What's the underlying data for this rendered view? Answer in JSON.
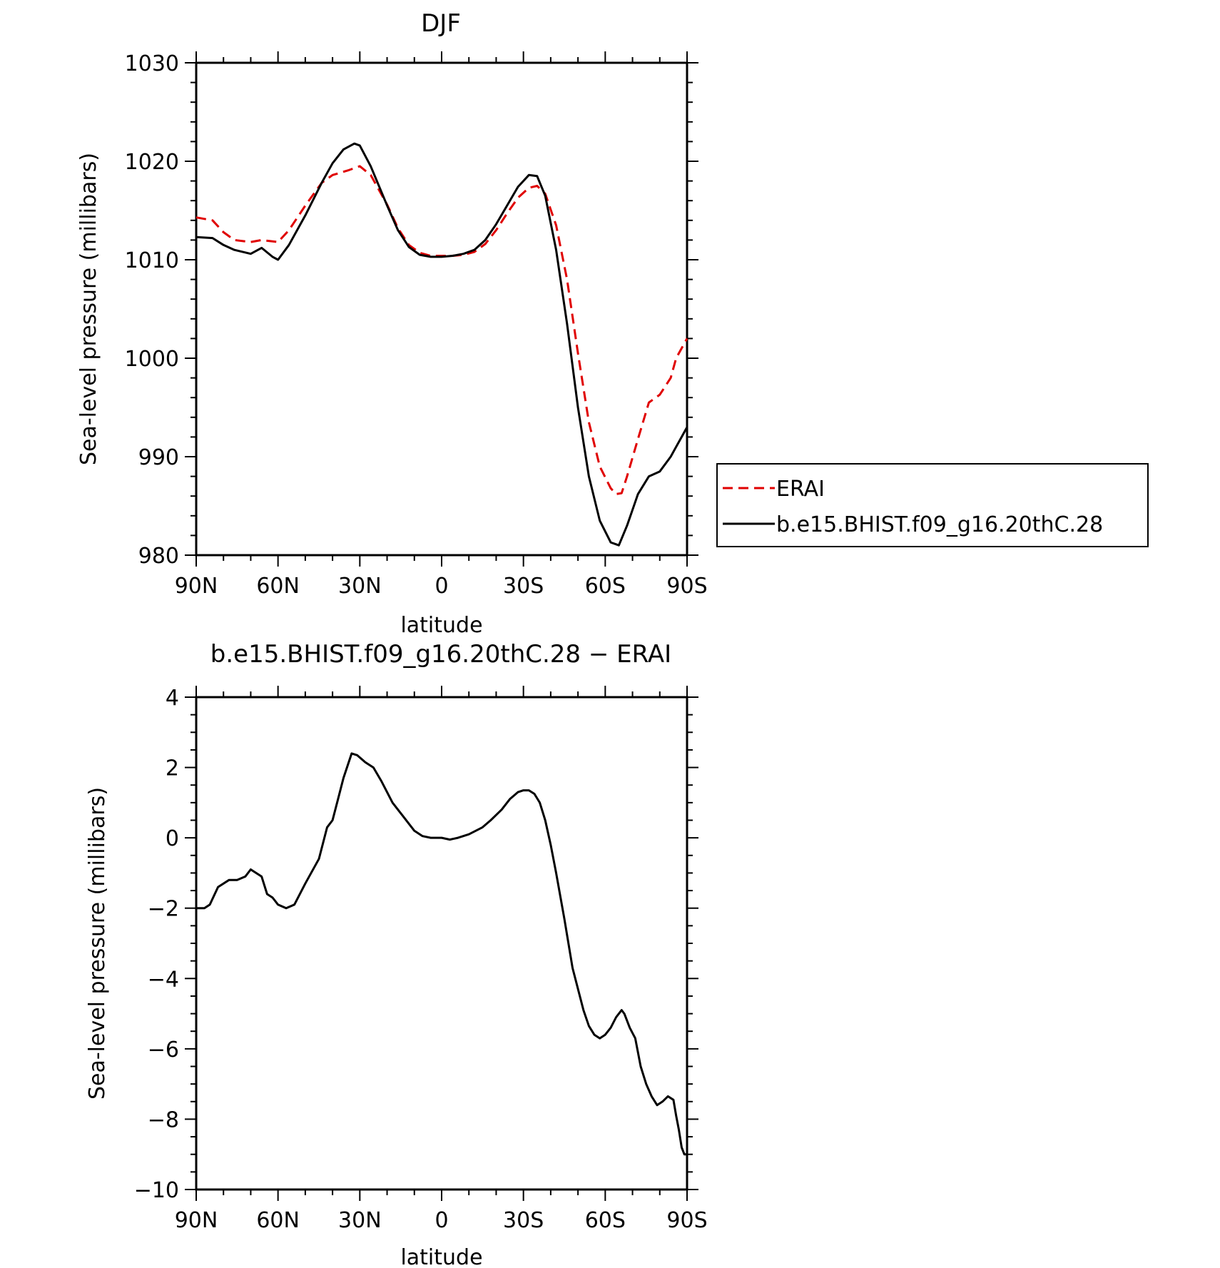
{
  "chart_data": [
    {
      "type": "line",
      "title": "DJF",
      "xlabel": "latitude",
      "ylabel": "Sea-level pressure (millibars)",
      "x_unit": "latitude (positive = N, negative = S)",
      "xlim": [
        90,
        -90
      ],
      "ylim": [
        980,
        1030
      ],
      "x_ticks": [
        90,
        60,
        30,
        0,
        -30,
        -60,
        -90
      ],
      "x_tick_labels": [
        "90N",
        "60N",
        "30N",
        "0",
        "30S",
        "60S",
        "90S"
      ],
      "y_ticks": [
        980,
        990,
        1000,
        1010,
        1020,
        1030
      ],
      "y_tick_labels": [
        "980",
        "990",
        "1000",
        "1010",
        "1020",
        "1030"
      ],
      "legend": {
        "placement": "right",
        "entries": [
          "ERAI",
          "b.e15.BHIST.f09_g16.20thC.28"
        ]
      },
      "series": [
        {
          "name": "ERAI",
          "color": "#e00000",
          "dash": "dashed",
          "x": [
            90,
            84,
            80,
            76,
            70,
            66,
            60,
            56,
            50,
            44,
            40,
            34,
            30,
            26,
            20,
            16,
            12,
            8,
            4,
            0,
            -4,
            -8,
            -12,
            -16,
            -20,
            -24,
            -28,
            -32,
            -35,
            -38,
            -42,
            -46,
            -50,
            -54,
            -58,
            -62,
            -64,
            -66,
            -68,
            -72,
            -76,
            -80,
            -84,
            -86,
            -90
          ],
          "y": [
            1014.3,
            1014.0,
            1012.8,
            1012.0,
            1011.8,
            1012.0,
            1011.8,
            1013.0,
            1015.5,
            1017.8,
            1018.6,
            1019.1,
            1019.5,
            1018.6,
            1015.6,
            1013.2,
            1011.5,
            1010.7,
            1010.4,
            1010.4,
            1010.4,
            1010.5,
            1010.8,
            1011.6,
            1013.0,
            1014.7,
            1016.3,
            1017.3,
            1017.5,
            1016.7,
            1013.5,
            1008.0,
            1000.5,
            993.5,
            989.0,
            986.8,
            986.2,
            986.3,
            988.0,
            991.8,
            995.5,
            996.3,
            998.0,
            1000.0,
            1002.0
          ]
        },
        {
          "name": "b.e15.BHIST.f09_g16.20thC.28",
          "color": "#000000",
          "dash": "solid",
          "x": [
            90,
            84,
            80,
            76,
            70,
            66,
            62,
            60,
            56,
            50,
            44,
            40,
            36,
            32,
            30,
            26,
            20,
            16,
            12,
            8,
            4,
            0,
            -4,
            -8,
            -12,
            -16,
            -20,
            -24,
            -28,
            -32,
            -35,
            -38,
            -42,
            -46,
            -50,
            -54,
            -58,
            -62,
            -65,
            -68,
            -72,
            -76,
            -80,
            -84,
            -86,
            -88,
            -90
          ],
          "y": [
            1012.3,
            1012.2,
            1011.5,
            1011.0,
            1010.6,
            1011.2,
            1010.3,
            1010.0,
            1011.5,
            1014.5,
            1017.8,
            1019.8,
            1021.2,
            1021.8,
            1021.6,
            1019.5,
            1015.5,
            1013.0,
            1011.3,
            1010.5,
            1010.3,
            1010.3,
            1010.4,
            1010.6,
            1011.0,
            1012.0,
            1013.6,
            1015.5,
            1017.4,
            1018.6,
            1018.5,
            1016.5,
            1011.0,
            1003.5,
            995.0,
            988.0,
            983.5,
            981.3,
            981.0,
            983.0,
            986.2,
            988.0,
            988.5,
            990.0,
            991.0,
            992.0,
            993.0
          ]
        }
      ]
    },
    {
      "type": "line",
      "title": "b.e15.BHIST.f09_g16.20thC.28 − ERAI",
      "xlabel": "latitude",
      "ylabel": "Sea-level pressure (millibars)",
      "x_unit": "latitude (positive = N, negative = S)",
      "xlim": [
        90,
        -90
      ],
      "ylim": [
        -10,
        4
      ],
      "x_ticks": [
        90,
        60,
        30,
        0,
        -30,
        -60,
        -90
      ],
      "x_tick_labels": [
        "90N",
        "60N",
        "30N",
        "0",
        "30S",
        "60S",
        "90S"
      ],
      "y_ticks": [
        -10,
        -8,
        -6,
        -4,
        -2,
        0,
        2,
        4
      ],
      "y_tick_labels": [
        "−10",
        "−8",
        "−6",
        "−4",
        "−2",
        "0",
        "2",
        "4"
      ],
      "series": [
        {
          "color": "#000000",
          "dash": "solid",
          "x": [
            90,
            87,
            85,
            82,
            78,
            75,
            72,
            70,
            66,
            64,
            62,
            60,
            57,
            54,
            50,
            45,
            42,
            40,
            38,
            36,
            33,
            31,
            28,
            25,
            22,
            18,
            14,
            10,
            7,
            4,
            0,
            -3,
            -6,
            -10,
            -15,
            -18,
            -22,
            -25,
            -28,
            -30,
            -32,
            -34,
            -36,
            -38,
            -40,
            -42,
            -45,
            -48,
            -52,
            -54,
            -56,
            -58,
            -60,
            -62,
            -64,
            -66,
            -67,
            -69,
            -71,
            -73,
            -75,
            -77,
            -79,
            -81,
            -83,
            -85,
            -86,
            -87,
            -88,
            -89,
            -90
          ],
          "y": [
            -2.0,
            -2.0,
            -1.9,
            -1.4,
            -1.2,
            -1.2,
            -1.1,
            -0.9,
            -1.1,
            -1.6,
            -1.7,
            -1.9,
            -2.0,
            -1.9,
            -1.3,
            -0.6,
            0.3,
            0.5,
            1.1,
            1.7,
            2.4,
            2.35,
            2.15,
            2.0,
            1.6,
            1.0,
            0.6,
            0.2,
            0.05,
            0.0,
            0.0,
            -0.05,
            0.0,
            0.1,
            0.3,
            0.5,
            0.8,
            1.1,
            1.3,
            1.35,
            1.35,
            1.25,
            1.0,
            0.5,
            -0.2,
            -1.0,
            -2.3,
            -3.7,
            -4.9,
            -5.35,
            -5.6,
            -5.7,
            -5.6,
            -5.4,
            -5.1,
            -4.9,
            -5.0,
            -5.4,
            -5.7,
            -6.5,
            -7.0,
            -7.35,
            -7.6,
            -7.5,
            -7.35,
            -7.45,
            -7.9,
            -8.3,
            -8.8,
            -9.0,
            -9.0
          ]
        }
      ]
    }
  ]
}
